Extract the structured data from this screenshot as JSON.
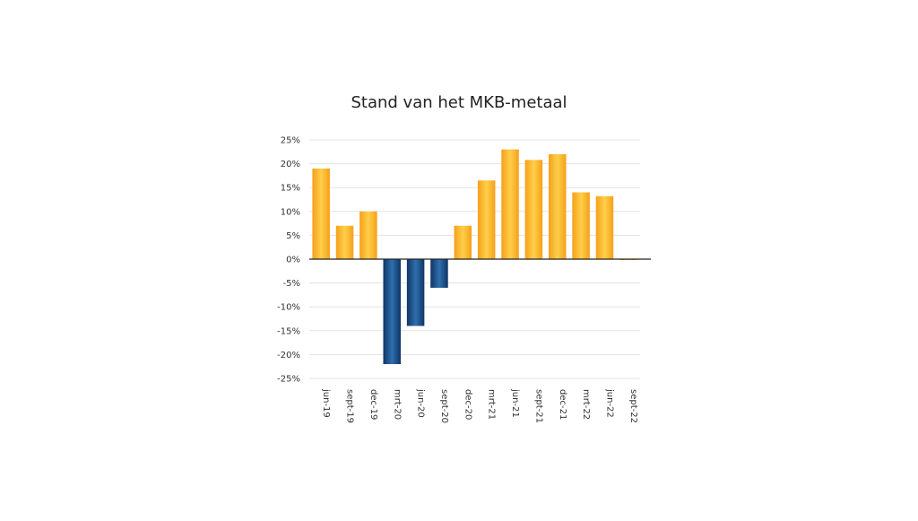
{
  "chart_data": {
    "type": "bar",
    "title": "Stand van het MKB-metaal",
    "xlabel": "",
    "ylabel": "",
    "categories": [
      "jun-19",
      "sept-19",
      "dec-19",
      "mrt-20",
      "jun-20",
      "sept-20",
      "dec-20",
      "mrt-21",
      "jun-21",
      "sept-21",
      "dec-21",
      "mrt-22",
      "jun-22",
      "sept-22"
    ],
    "values": [
      19,
      7,
      10,
      -22,
      -14,
      -6,
      7,
      16.5,
      23,
      20.8,
      22,
      14,
      13.2,
      0
    ],
    "ylim": [
      -25,
      25
    ],
    "yticks": [
      25,
      20,
      15,
      10,
      5,
      0,
      -5,
      -10,
      -15,
      -20,
      -25
    ],
    "ytick_labels": [
      "25%",
      "20%",
      "15%",
      "10%",
      "5%",
      "0%",
      "-5%",
      "-10%",
      "-15%",
      "-20%",
      "-25%"
    ],
    "grid": true,
    "legend": "none",
    "colors": {
      "positive_light": "#ffcf4a",
      "positive_dark": "#f6a01a",
      "negative_light": "#2f6fad",
      "negative_dark": "#0f3565"
    }
  }
}
